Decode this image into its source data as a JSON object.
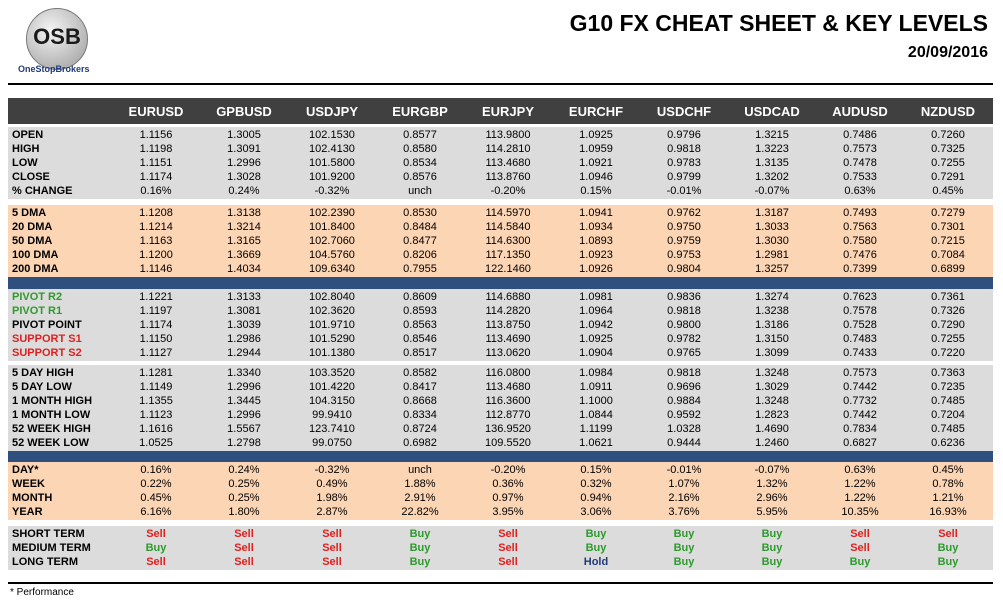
{
  "header": {
    "logo_text": "OSB",
    "logo_caption": "OneStopBrokers",
    "title": "G10 FX CHEAT SHEET & KEY LEVELS",
    "date": "20/09/2016"
  },
  "table": {
    "columns": [
      "EURUSD",
      "GPBUSD",
      "USDJPY",
      "EURGBP",
      "EURJPY",
      "EURCHF",
      "USDCHF",
      "USDCAD",
      "AUDUSD",
      "NZDUSD"
    ],
    "signal_colors": {
      "Sell": "#e02020",
      "Buy": "#2e9a2e",
      "Hold": "#1f3b7a"
    },
    "sections": [
      {
        "background": "#dcdcdc",
        "rows": [
          {
            "label": "OPEN",
            "values": [
              "1.1156",
              "1.3005",
              "102.1530",
              "0.8577",
              "113.9800",
              "1.0925",
              "0.9796",
              "1.3215",
              "0.7486",
              "0.7260"
            ]
          },
          {
            "label": "HIGH",
            "values": [
              "1.1198",
              "1.3091",
              "102.4130",
              "0.8580",
              "114.2810",
              "1.0959",
              "0.9818",
              "1.3223",
              "0.7573",
              "0.7325"
            ]
          },
          {
            "label": "LOW",
            "values": [
              "1.1151",
              "1.2996",
              "101.5800",
              "0.8534",
              "113.4680",
              "1.0921",
              "0.9783",
              "1.3135",
              "0.7478",
              "0.7255"
            ]
          },
          {
            "label": "CLOSE",
            "values": [
              "1.1174",
              "1.3028",
              "101.9200",
              "0.8576",
              "113.8760",
              "1.0946",
              "0.9799",
              "1.3202",
              "0.7533",
              "0.7291"
            ]
          },
          {
            "label": "% CHANGE",
            "values": [
              "0.16%",
              "0.24%",
              "-0.32%",
              "unch",
              "-0.20%",
              "0.15%",
              "-0.01%",
              "-0.07%",
              "0.63%",
              "0.45%"
            ]
          }
        ]
      },
      {
        "background": "#fcd5b4",
        "rows": [
          {
            "label": "5 DMA",
            "values": [
              "1.1208",
              "1.3138",
              "102.2390",
              "0.8530",
              "114.5970",
              "1.0941",
              "0.9762",
              "1.3187",
              "0.7493",
              "0.7279"
            ]
          },
          {
            "label": "20 DMA",
            "values": [
              "1.1214",
              "1.3214",
              "101.8400",
              "0.8484",
              "114.5840",
              "1.0934",
              "0.9750",
              "1.3033",
              "0.7563",
              "0.7301"
            ]
          },
          {
            "label": "50 DMA",
            "values": [
              "1.1163",
              "1.3165",
              "102.7060",
              "0.8477",
              "114.6300",
              "1.0893",
              "0.9759",
              "1.3030",
              "0.7580",
              "0.7215"
            ]
          },
          {
            "label": "100 DMA",
            "values": [
              "1.1200",
              "1.3669",
              "104.5760",
              "0.8206",
              "117.1350",
              "1.0923",
              "0.9753",
              "1.2981",
              "0.7476",
              "0.7084"
            ]
          },
          {
            "label": "200 DMA",
            "values": [
              "1.1146",
              "1.4034",
              "109.6340",
              "0.7955",
              "122.1460",
              "1.0926",
              "0.9804",
              "1.3257",
              "0.7399",
              "0.6899"
            ]
          }
        ]
      },
      {
        "background": "#dcdcdc",
        "rows": [
          {
            "label": "PIVOT R2",
            "label_color": "#2e9a2e",
            "values": [
              "1.1221",
              "1.3133",
              "102.8040",
              "0.8609",
              "114.6880",
              "1.0981",
              "0.9836",
              "1.3274",
              "0.7623",
              "0.7361"
            ]
          },
          {
            "label": "PIVOT R1",
            "label_color": "#2e9a2e",
            "values": [
              "1.1197",
              "1.3081",
              "102.3620",
              "0.8593",
              "114.2820",
              "1.0964",
              "0.9818",
              "1.3238",
              "0.7578",
              "0.7326"
            ]
          },
          {
            "label": "PIVOT POINT",
            "values": [
              "1.1174",
              "1.3039",
              "101.9710",
              "0.8563",
              "113.8750",
              "1.0942",
              "0.9800",
              "1.3186",
              "0.7528",
              "0.7290"
            ]
          },
          {
            "label": "SUPPORT S1",
            "label_color": "#e02020",
            "values": [
              "1.1150",
              "1.2986",
              "101.5290",
              "0.8546",
              "113.4690",
              "1.0925",
              "0.9782",
              "1.3150",
              "0.7483",
              "0.7255"
            ]
          },
          {
            "label": "SUPPORT S2",
            "label_color": "#e02020",
            "values": [
              "1.1127",
              "1.2944",
              "101.1380",
              "0.8517",
              "113.0620",
              "1.0904",
              "0.9765",
              "1.3099",
              "0.7433",
              "0.7220"
            ]
          }
        ]
      },
      {
        "background": "#dcdcdc",
        "rows": [
          {
            "label": "5 DAY HIGH",
            "values": [
              "1.1281",
              "1.3340",
              "103.3520",
              "0.8582",
              "116.0800",
              "1.0984",
              "0.9818",
              "1.3248",
              "0.7573",
              "0.7363"
            ]
          },
          {
            "label": "5 DAY LOW",
            "values": [
              "1.1149",
              "1.2996",
              "101.4220",
              "0.8417",
              "113.4680",
              "1.0911",
              "0.9696",
              "1.3029",
              "0.7442",
              "0.7235"
            ]
          },
          {
            "label": "1 MONTH HIGH",
            "values": [
              "1.1355",
              "1.3445",
              "104.3150",
              "0.8668",
              "116.3600",
              "1.1000",
              "0.9884",
              "1.3248",
              "0.7732",
              "0.7485"
            ]
          },
          {
            "label": "1 MONTH LOW",
            "values": [
              "1.1123",
              "1.2996",
              "99.9410",
              "0.8334",
              "112.8770",
              "1.0844",
              "0.9592",
              "1.2823",
              "0.7442",
              "0.7204"
            ]
          },
          {
            "label": "52 WEEK HIGH",
            "values": [
              "1.1616",
              "1.5567",
              "123.7410",
              "0.8724",
              "136.9520",
              "1.1199",
              "1.0328",
              "1.4690",
              "0.7834",
              "0.7485"
            ]
          },
          {
            "label": "52 WEEK LOW",
            "values": [
              "1.0525",
              "1.2798",
              "99.0750",
              "0.6982",
              "109.5520",
              "1.0621",
              "0.9444",
              "1.2460",
              "0.6827",
              "0.6236"
            ]
          }
        ]
      },
      {
        "background": "#fcd5b4",
        "rows": [
          {
            "label": "DAY*",
            "values": [
              "0.16%",
              "0.24%",
              "-0.32%",
              "unch",
              "-0.20%",
              "0.15%",
              "-0.01%",
              "-0.07%",
              "0.63%",
              "0.45%"
            ]
          },
          {
            "label": "WEEK",
            "values": [
              "0.22%",
              "0.25%",
              "0.49%",
              "1.88%",
              "0.36%",
              "0.32%",
              "1.07%",
              "1.32%",
              "1.22%",
              "0.78%"
            ]
          },
          {
            "label": "MONTH",
            "values": [
              "0.45%",
              "0.25%",
              "1.98%",
              "2.91%",
              "0.97%",
              "0.94%",
              "2.16%",
              "2.96%",
              "1.22%",
              "1.21%"
            ]
          },
          {
            "label": "YEAR",
            "values": [
              "6.16%",
              "1.80%",
              "2.87%",
              "22.82%",
              "3.95%",
              "3.06%",
              "3.76%",
              "5.95%",
              "10.35%",
              "16.93%"
            ]
          }
        ]
      },
      {
        "background": "#dcdcdc",
        "signals": true,
        "rows": [
          {
            "label": "SHORT TERM",
            "values": [
              "Sell",
              "Sell",
              "Sell",
              "Buy",
              "Sell",
              "Buy",
              "Buy",
              "Buy",
              "Sell",
              "Sell"
            ]
          },
          {
            "label": "MEDIUM TERM",
            "values": [
              "Buy",
              "Sell",
              "Sell",
              "Buy",
              "Sell",
              "Buy",
              "Buy",
              "Buy",
              "Sell",
              "Buy"
            ]
          },
          {
            "label": "LONG TERM",
            "values": [
              "Sell",
              "Sell",
              "Sell",
              "Buy",
              "Sell",
              "Hold",
              "Buy",
              "Buy",
              "Buy",
              "Buy"
            ]
          }
        ]
      }
    ]
  },
  "footnote": "* Performance"
}
